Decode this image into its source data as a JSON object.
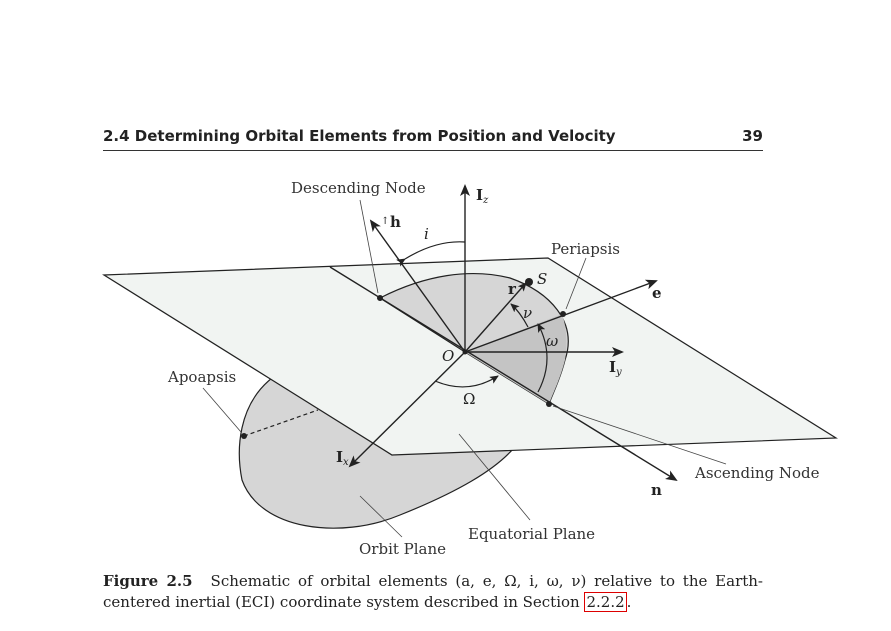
{
  "header": {
    "section_title": "2.4 Determining Orbital Elements from Position and Velocity",
    "page_number": "39"
  },
  "figure": {
    "labels": {
      "descending_node": "Descending Node",
      "periapsis": "Periapsis",
      "apoapsis": "Apoapsis",
      "ascending_node": "Ascending Node",
      "equatorial_plane": "Equatorial Plane",
      "orbit_plane": "Orbit Plane",
      "origin": "O",
      "satellite": "S",
      "inclination": "i",
      "true_anomaly": "ν",
      "arg_periapsis": "ω",
      "raan": "Ω",
      "h_prefix": "↑",
      "h": "h",
      "r": "r",
      "e": "e",
      "n": "n",
      "I": "I",
      "Iz_sub": "z",
      "Iy_sub": "y",
      "Ix_sub": "x"
    },
    "colors": {
      "plane_fill": "#f1f4f2",
      "orbit_fill": "#d6d6d6",
      "line": "#222222"
    }
  },
  "caption": {
    "label": "Figure 2.5",
    "text": "Schematic of orbital elements (a, e, Ω, i, ω, ν) relative to the Earth-centered inertial (ECI) coordinate system described in Section",
    "ref": "2.2.2",
    "end": "."
  }
}
